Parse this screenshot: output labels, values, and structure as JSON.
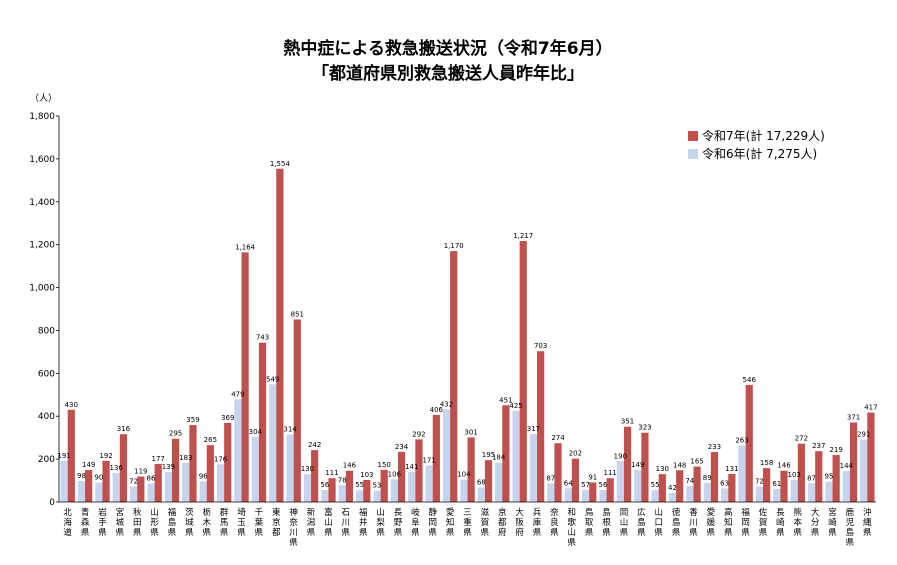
{
  "chart_data": {
    "type": "bar",
    "title": "熱中症による救急搬送状況（令和7年6月）",
    "subtitle": "「都道府県別救急搬送人員昨年比」",
    "ylabel": "（人）",
    "ylim": [
      0,
      1800
    ],
    "yticks": [
      "0",
      "200",
      "400",
      "600",
      "800",
      "1,000",
      "1,200",
      "1,400",
      "1,600",
      "1,800"
    ],
    "legend_position": "top-right",
    "colors": {
      "current": "#c0504d",
      "previous": "#c6d4ee"
    },
    "categories": [
      "北海道",
      "青森県",
      "岩手県",
      "宮城県",
      "秋田県",
      "山形県",
      "福島県",
      "茨城県",
      "栃木県",
      "群馬県",
      "埼玉県",
      "千葉県",
      "東京都",
      "神奈川県",
      "新潟県",
      "富山県",
      "石川県",
      "福井県",
      "山梨県",
      "長野県",
      "岐阜県",
      "静岡県",
      "愛知県",
      "三重県",
      "滋賀県",
      "京都府",
      "大阪府",
      "兵庫県",
      "奈良県",
      "和歌山県",
      "鳥取県",
      "島根県",
      "岡山県",
      "広島県",
      "山口県",
      "徳島県",
      "香川県",
      "愛媛県",
      "高知県",
      "福岡県",
      "佐賀県",
      "長崎県",
      "熊本県",
      "大分県",
      "宮崎県",
      "鹿児島県",
      "沖縄県"
    ],
    "series": [
      {
        "name": "令和7年(計 17,229人)",
        "values": [
          430,
          149,
          192,
          316,
          119,
          177,
          295,
          359,
          265,
          369,
          1164,
          743,
          1554,
          851,
          242,
          111,
          146,
          103,
          150,
          234,
          292,
          406,
          1170,
          301,
          195,
          451,
          1217,
          703,
          274,
          202,
          91,
          111,
          351,
          323,
          130,
          148,
          165,
          233,
          131,
          546,
          158,
          146,
          272,
          237,
          219,
          371,
          417
        ]
      },
      {
        "name": "令和6年(計 7,275人)",
        "values": [
          191,
          98,
          90,
          136,
          72,
          86,
          139,
          183,
          96,
          176,
          479,
          304,
          549,
          314,
          130,
          56,
          78,
          55,
          53,
          106,
          141,
          171,
          432,
          104,
          68,
          184,
          425,
          317,
          87,
          64,
          57,
          56,
          190,
          149,
          55,
          42,
          74,
          89,
          63,
          263,
          72,
          61,
          103,
          87,
          95,
          144,
          291
        ]
      }
    ]
  }
}
